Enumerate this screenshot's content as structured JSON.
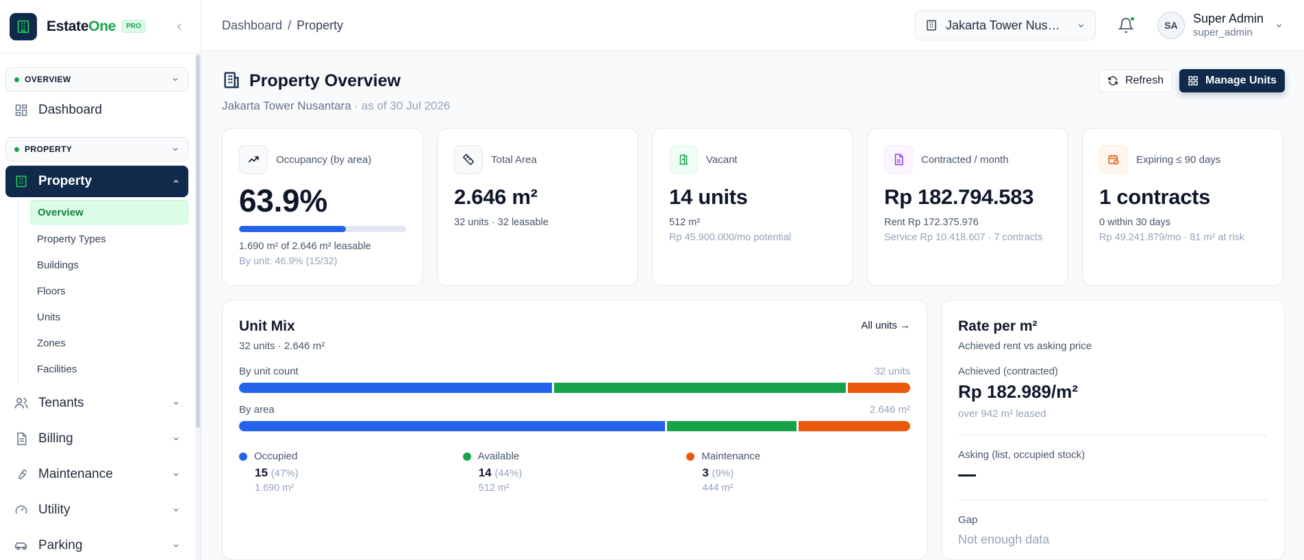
{
  "brand": {
    "name_a": "Estate",
    "name_b": "One",
    "badge": "PRO"
  },
  "sidebar": {
    "groups": [
      {
        "label": "OVERVIEW"
      },
      {
        "label": "PROPERTY"
      }
    ],
    "dashboard": "Dashboard",
    "property": "Property",
    "property_sub": [
      "Overview",
      "Property Types",
      "Buildings",
      "Floors",
      "Units",
      "Zones",
      "Facilities"
    ],
    "items": [
      {
        "label": "Tenants",
        "icon": "users-icon"
      },
      {
        "label": "Billing",
        "icon": "document-icon"
      },
      {
        "label": "Maintenance",
        "icon": "wrench-icon"
      },
      {
        "label": "Utility",
        "icon": "gauge-icon"
      },
      {
        "label": "Parking",
        "icon": "car-icon"
      }
    ]
  },
  "header": {
    "breadcrumb": [
      "Dashboard",
      "Property"
    ],
    "property_select": "Jakarta Tower Nusantara",
    "user_initials": "SA",
    "user_name": "Super Admin",
    "user_handle": "super_admin"
  },
  "page": {
    "title": "Property Overview",
    "subtitle_name": "Jakarta Tower Nusantara",
    "subtitle_date": " · as of 30 Jul 2026",
    "refresh_label": "Refresh",
    "manage_label": "Manage Units"
  },
  "cards": {
    "occupancy": {
      "label": "Occupancy (by area)",
      "value": "63.9%",
      "progress": 0.639,
      "line1": "1.690 m² of 2.646 m² leasable",
      "line2": "By unit: 46.9% (15/32)"
    },
    "area": {
      "label": "Total Area",
      "value": "2.646 m²",
      "line1": "32 units · 32 leasable"
    },
    "vacant": {
      "label": "Vacant",
      "value": "14 units",
      "line1": "512 m²",
      "line2": "Rp 45.900.000/mo potential"
    },
    "contracted": {
      "label": "Contracted / month",
      "value": "Rp 182.794.583",
      "line1": "Rent Rp 172.375.976",
      "line2": "Service Rp 10.418.607 · 7 contracts"
    },
    "expiring": {
      "label": "Expiring ≤ 90 days",
      "value": "1 contracts",
      "line1": "0 within 30 days",
      "line2": "Rp 49.241.879/mo · 81 m² at risk"
    }
  },
  "unit_mix": {
    "title": "Unit Mix",
    "subtitle": "32 units · 2.646 m²",
    "link": "All units",
    "by_count_label": "By unit count",
    "by_count_total": "32 units",
    "by_area_label": "By area",
    "by_area_total": "2.646 m²",
    "count_shares": [
      15,
      14,
      3
    ],
    "area_shares": [
      1690,
      512,
      444
    ],
    "colors": [
      "#2563eb",
      "#16a34a",
      "#ea580c"
    ],
    "legend": [
      {
        "name": "Occupied",
        "count": "15",
        "pct": "(47%)",
        "area": "1.690 m²"
      },
      {
        "name": "Available",
        "count": "14",
        "pct": "(44%)",
        "area": "512 m²"
      },
      {
        "name": "Maintenance",
        "count": "3",
        "pct": "(9%)",
        "area": "444 m²"
      }
    ]
  },
  "rate": {
    "title": "Rate per m²",
    "subtitle": "Achieved rent vs asking price",
    "achieved_label": "Achieved (contracted)",
    "achieved_value": "Rp 182.989/m²",
    "achieved_note": "over 942 m² leased",
    "asking_label": "Asking (list, occupied stock)",
    "gap_label": "Gap",
    "gap_value": "Not enough data"
  }
}
